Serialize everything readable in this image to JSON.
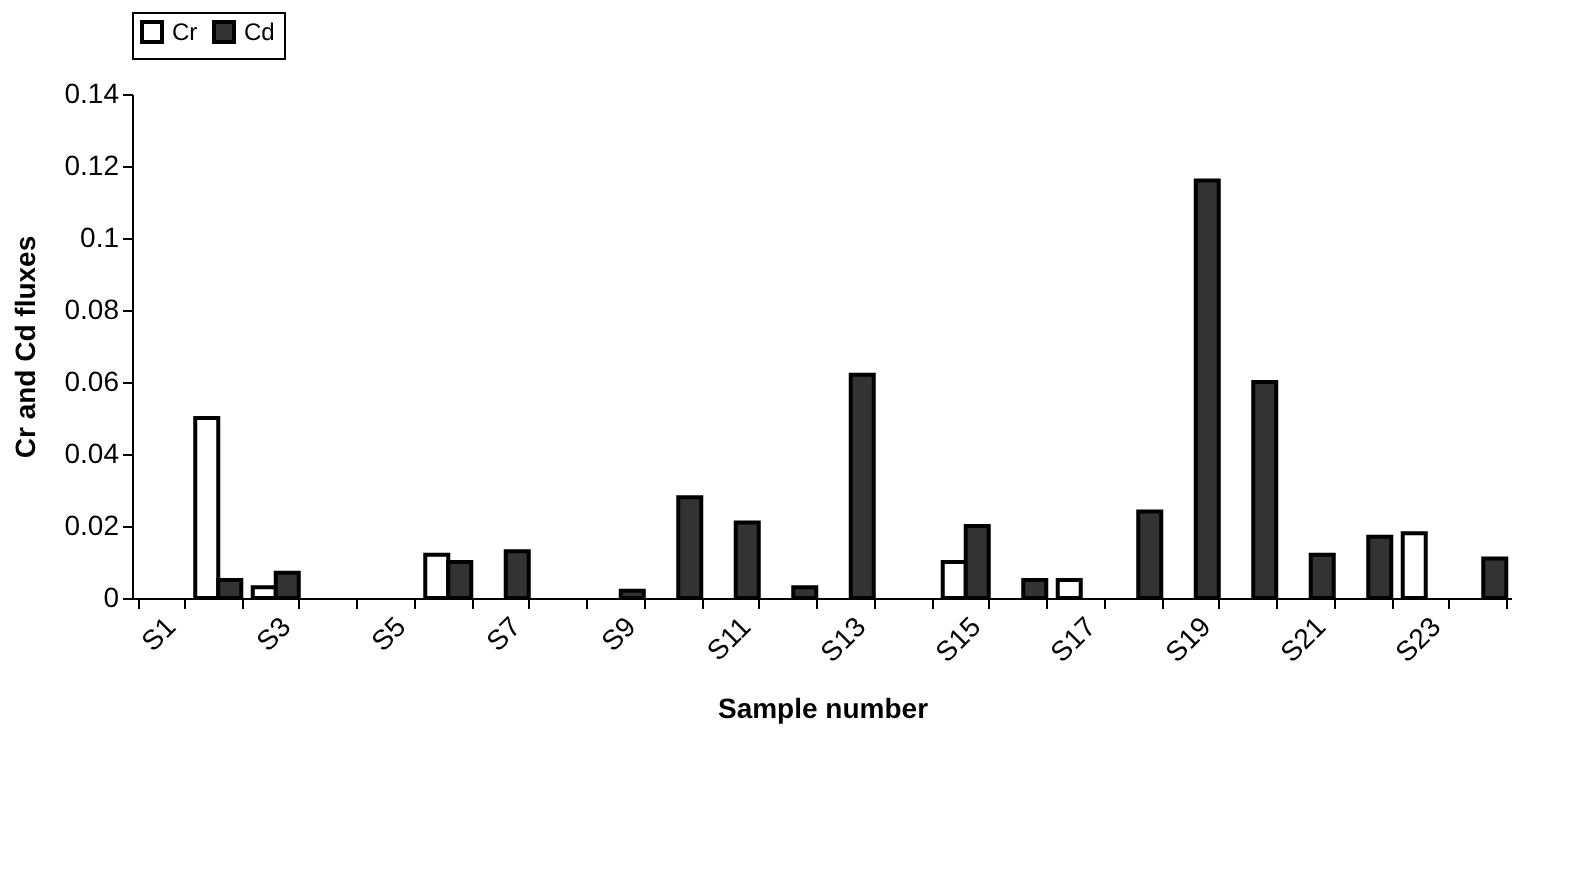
{
  "chart_data": {
    "type": "bar",
    "xlabel": "Sample number",
    "ylabel": "Cr and Cd fluxes",
    "categories": [
      "S1",
      null,
      "S3",
      null,
      "S5",
      null,
      "S7",
      null,
      "S9",
      null,
      "S11",
      null,
      "S13",
      null,
      "S15",
      null,
      "S17",
      null,
      "S19",
      null,
      "S21",
      null,
      "S23",
      null
    ],
    "series": [
      {
        "name": "Cr",
        "color": "#ffffff",
        "values": [
          0,
          0.05,
          0.003,
          0,
          0,
          0.012,
          0,
          0,
          0,
          0,
          0,
          0,
          0,
          0,
          0.01,
          0,
          0.005,
          0,
          0,
          0,
          0,
          0,
          0.018,
          0
        ]
      },
      {
        "name": "Cd",
        "color": "#333333",
        "values": [
          0,
          0.005,
          0.007,
          0,
          0,
          0.01,
          0.013,
          0,
          0.002,
          0.028,
          0.021,
          0.003,
          0.062,
          0,
          0.02,
          0.005,
          0,
          0.024,
          0.116,
          0.06,
          0.012,
          0.017,
          0,
          0.011
        ]
      }
    ],
    "ylim": [
      0,
      0.14
    ],
    "yticks": [
      0,
      0.02,
      0.04,
      0.06,
      0.08,
      0.1,
      0.12,
      0.14
    ],
    "grid": false,
    "legend": "top"
  }
}
